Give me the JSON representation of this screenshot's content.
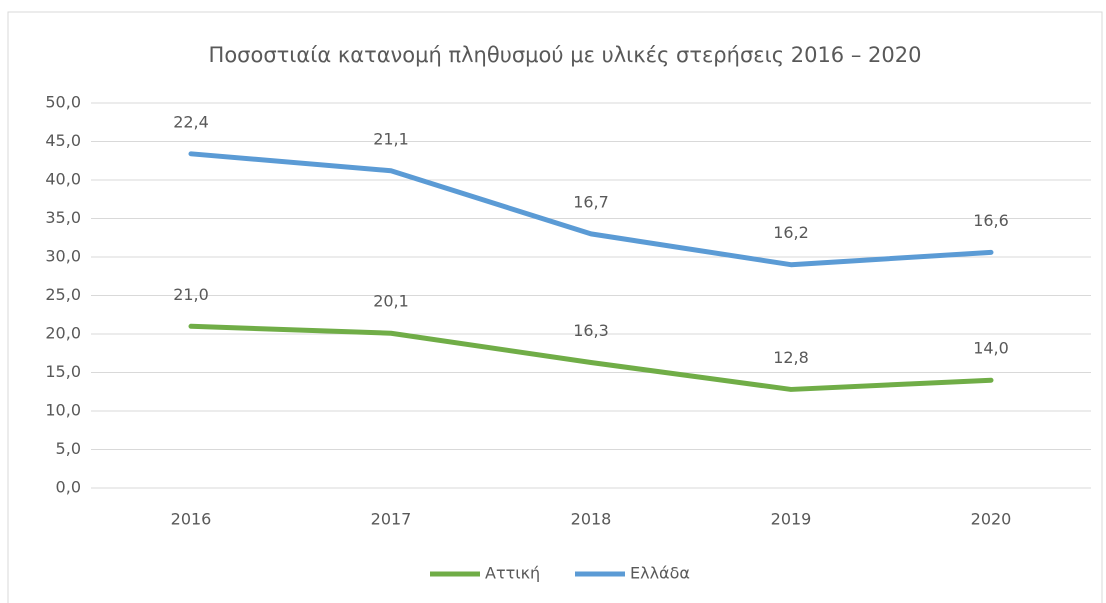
{
  "chart_data": {
    "type": "line",
    "stacked": true,
    "title": "Ποσοστιαία κατανομή πληθυσμού με υλικές στερήσεις 2016 – 2020",
    "categories": [
      "2016",
      "2017",
      "2018",
      "2019",
      "2020"
    ],
    "series": [
      {
        "name": "Αττική",
        "color": "#70ad47",
        "values": [
          21.0,
          20.1,
          16.3,
          12.8,
          14.0
        ],
        "value_labels": [
          "21,0",
          "20,1",
          "16,3",
          "12,8",
          "14,0"
        ]
      },
      {
        "name": "Ελλάδα",
        "color": "#5b9bd5",
        "values": [
          22.4,
          21.1,
          16.7,
          16.2,
          16.6
        ],
        "value_labels": [
          "22,4",
          "21,1",
          "16,7",
          "16,2",
          "16,6"
        ]
      }
    ],
    "ylim": [
      0,
      50
    ],
    "yticks": [
      {
        "value": 0,
        "label": "0,0"
      },
      {
        "value": 5,
        "label": "5,0"
      },
      {
        "value": 10,
        "label": "10,0"
      },
      {
        "value": 15,
        "label": "15,0"
      },
      {
        "value": 20,
        "label": "20,0"
      },
      {
        "value": 25,
        "label": "25,0"
      },
      {
        "value": 30,
        "label": "30,0"
      },
      {
        "value": 35,
        "label": "35,0"
      },
      {
        "value": 40,
        "label": "40,0"
      },
      {
        "value": 45,
        "label": "45,0"
      },
      {
        "value": 50,
        "label": "50,0"
      }
    ],
    "grid": true,
    "legend": "bottom"
  }
}
